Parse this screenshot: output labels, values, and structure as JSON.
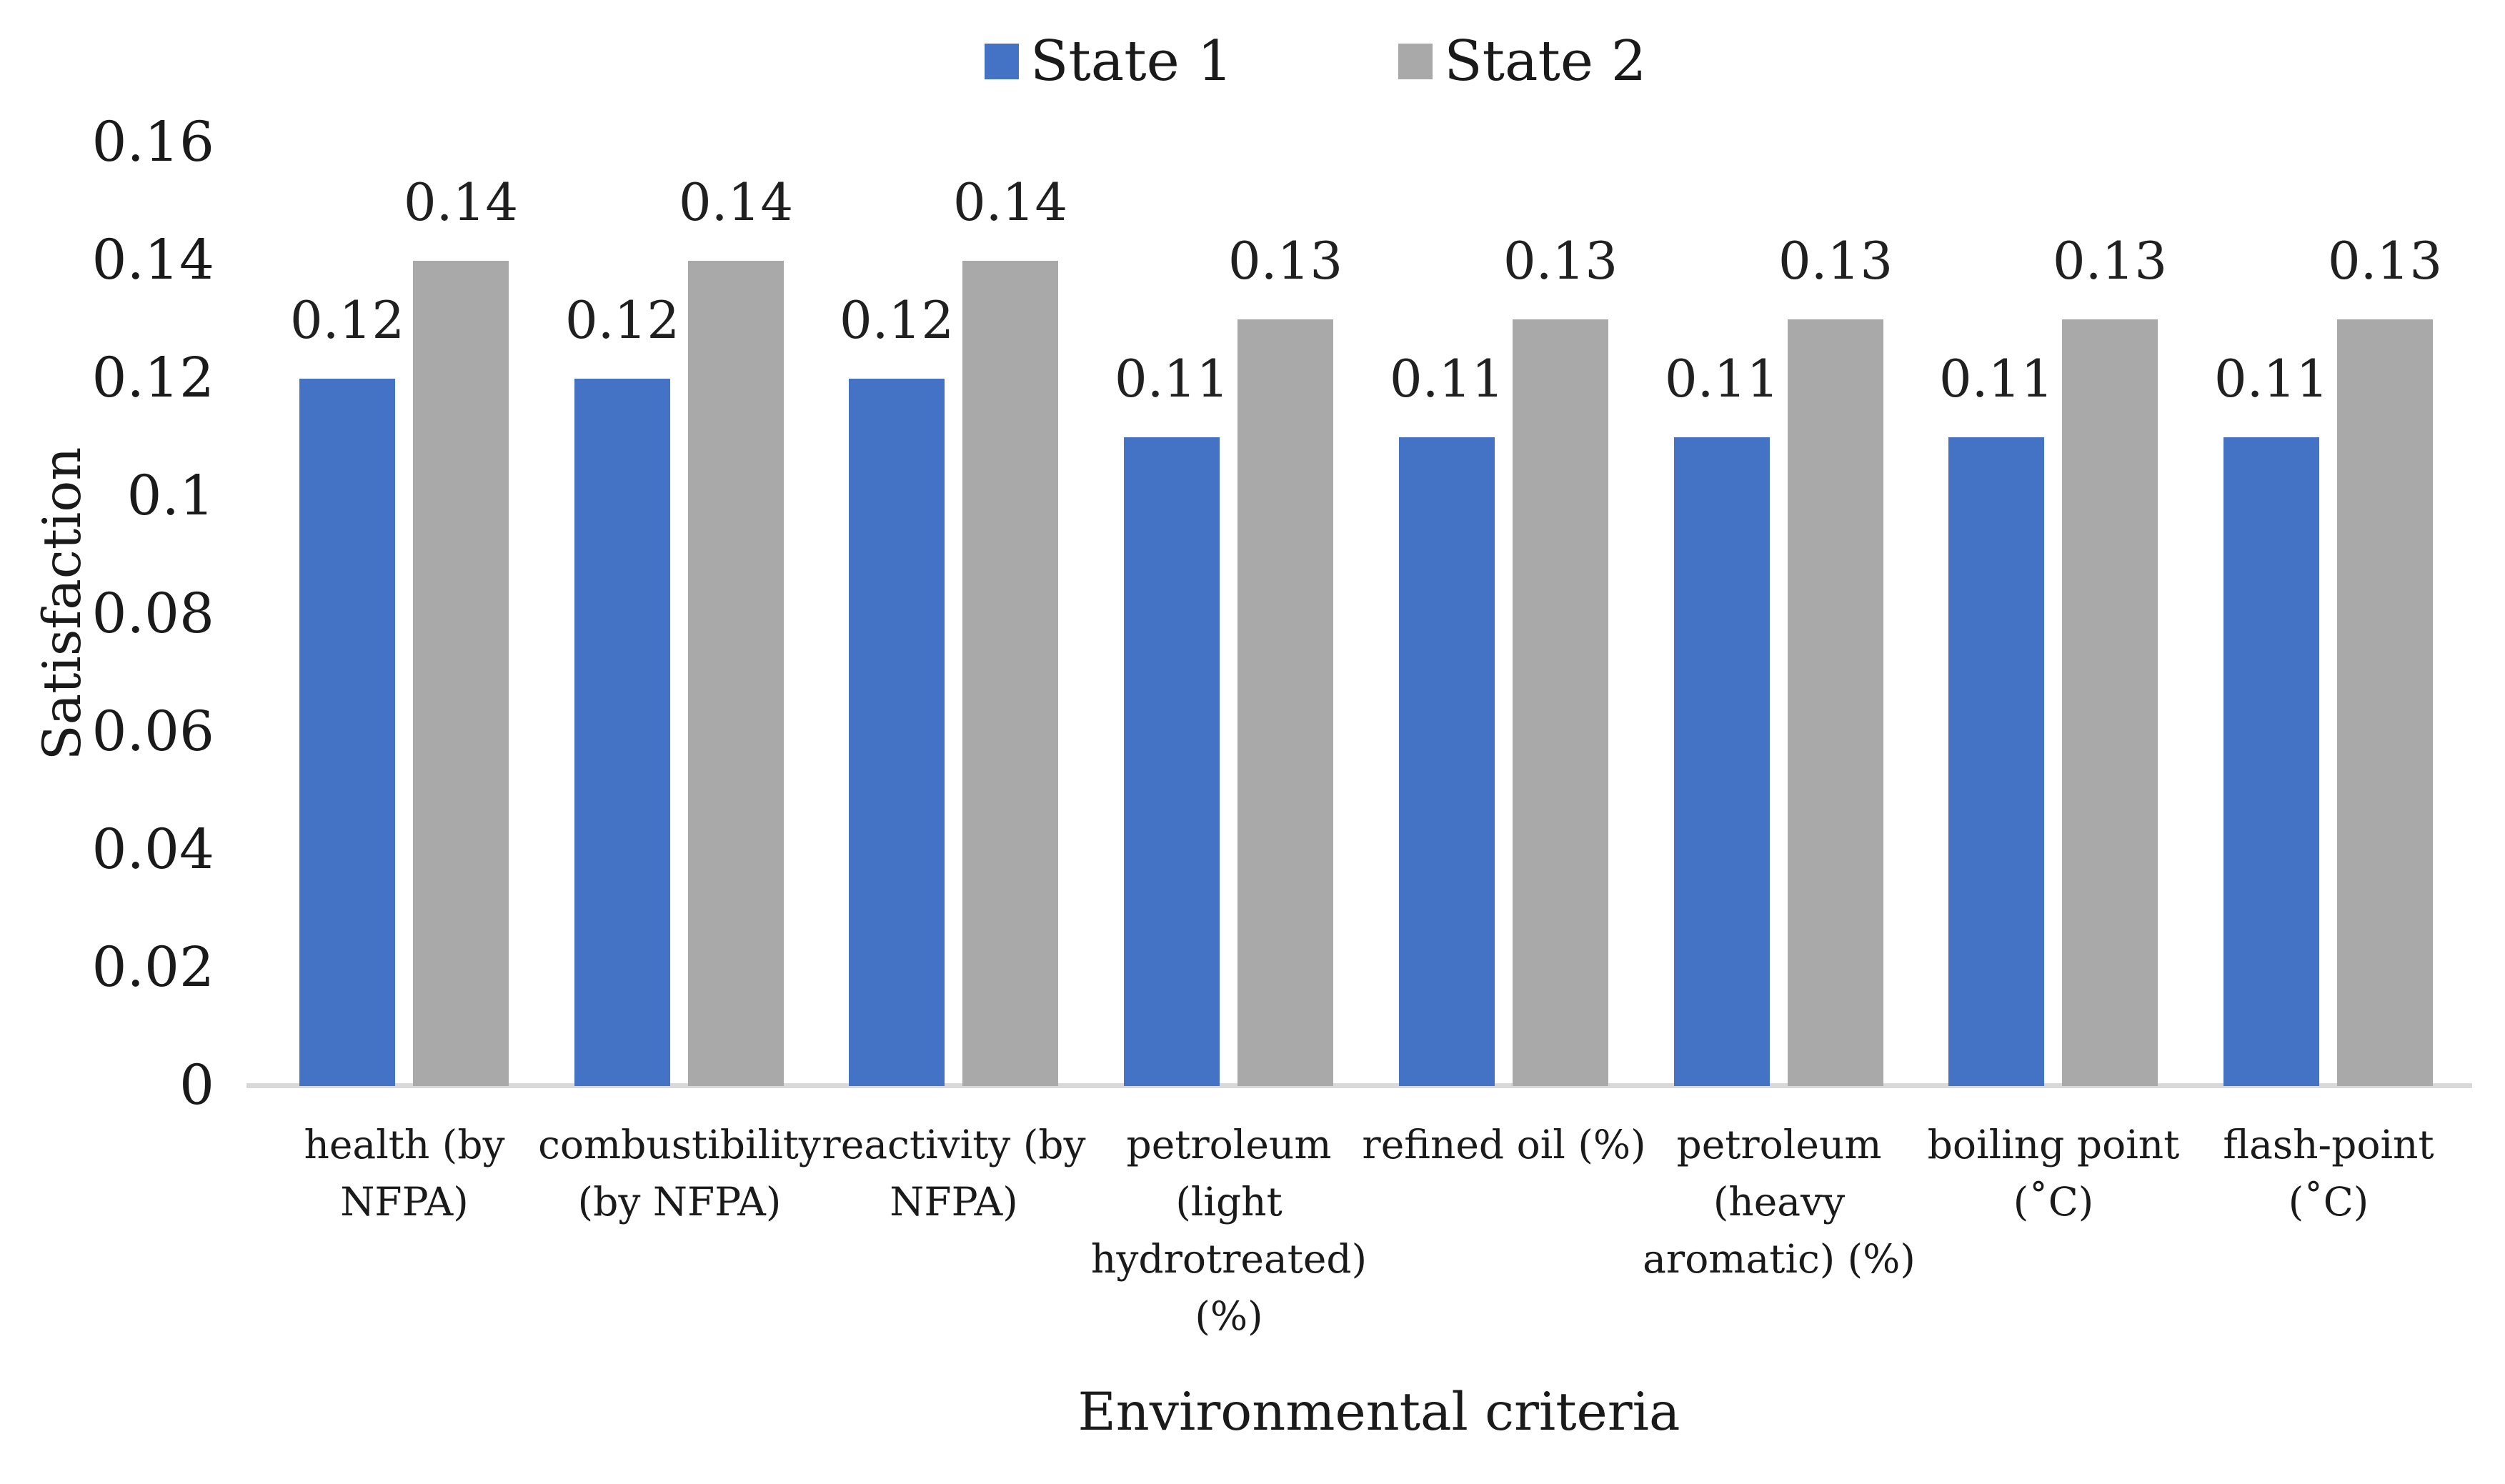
{
  "chart_data": {
    "type": "bar",
    "title": "",
    "xlabel": "Environmental criteria",
    "ylabel": "Satisfaction",
    "categories": [
      "health (by NFPA)",
      "combustibility (by NFPA)",
      "reactivity (by NFPA)",
      "petroleum (light hydrotreated) (%)",
      "refined oil (%)",
      "petroleum (heavy aromatic) (%)",
      "boiling point (°C)",
      "flash-point (°C)"
    ],
    "category_lines": [
      [
        "health (by",
        "NFPA)"
      ],
      [
        "combustibility",
        "(by NFPA)"
      ],
      [
        "reactivity (by",
        "NFPA)"
      ],
      [
        "petroleum",
        "(light",
        "hydrotreated)",
        "(%)"
      ],
      [
        "refined oil (%)"
      ],
      [
        "petroleum",
        "(heavy",
        "aromatic) (%)"
      ],
      [
        "boiling point",
        "(˚C)"
      ],
      [
        "flash-point",
        "(˚C)"
      ]
    ],
    "series": [
      {
        "name": "State 1",
        "color": "#4472C4",
        "values": [
          0.12,
          0.12,
          0.12,
          0.11,
          0.11,
          0.11,
          0.11,
          0.11
        ],
        "labels": [
          "0.12",
          "0.12",
          "0.12",
          "0.11",
          "0.11",
          "0.11",
          "0.11",
          "0.11"
        ]
      },
      {
        "name": "State 2",
        "color": "#A9A9A9",
        "values": [
          0.14,
          0.14,
          0.14,
          0.13,
          0.13,
          0.13,
          0.13,
          0.13
        ],
        "labels": [
          "0.14",
          "0.14",
          "0.14",
          "0.13",
          "0.13",
          "0.13",
          "0.13",
          "0.13"
        ]
      }
    ],
    "ylim": [
      0,
      0.16
    ],
    "y_ticks": [
      {
        "value": 0,
        "label": "0"
      },
      {
        "value": 0.02,
        "label": "0.02"
      },
      {
        "value": 0.04,
        "label": "0.04"
      },
      {
        "value": 0.06,
        "label": "0.06"
      },
      {
        "value": 0.08,
        "label": "0.08"
      },
      {
        "value": 0.1,
        "label": "0.1"
      },
      {
        "value": 0.12,
        "label": "0.12"
      },
      {
        "value": 0.14,
        "label": "0.14"
      },
      {
        "value": 0.16,
        "label": "0.16"
      }
    ],
    "grid": "off",
    "legend_position": "top-center",
    "data_labels": "on"
  },
  "colors": {
    "series1": "#4472C4",
    "series2": "#A9A9A9",
    "axis_line": "#D9D9D9",
    "text": "#1a1a1a",
    "background": "#ffffff"
  }
}
